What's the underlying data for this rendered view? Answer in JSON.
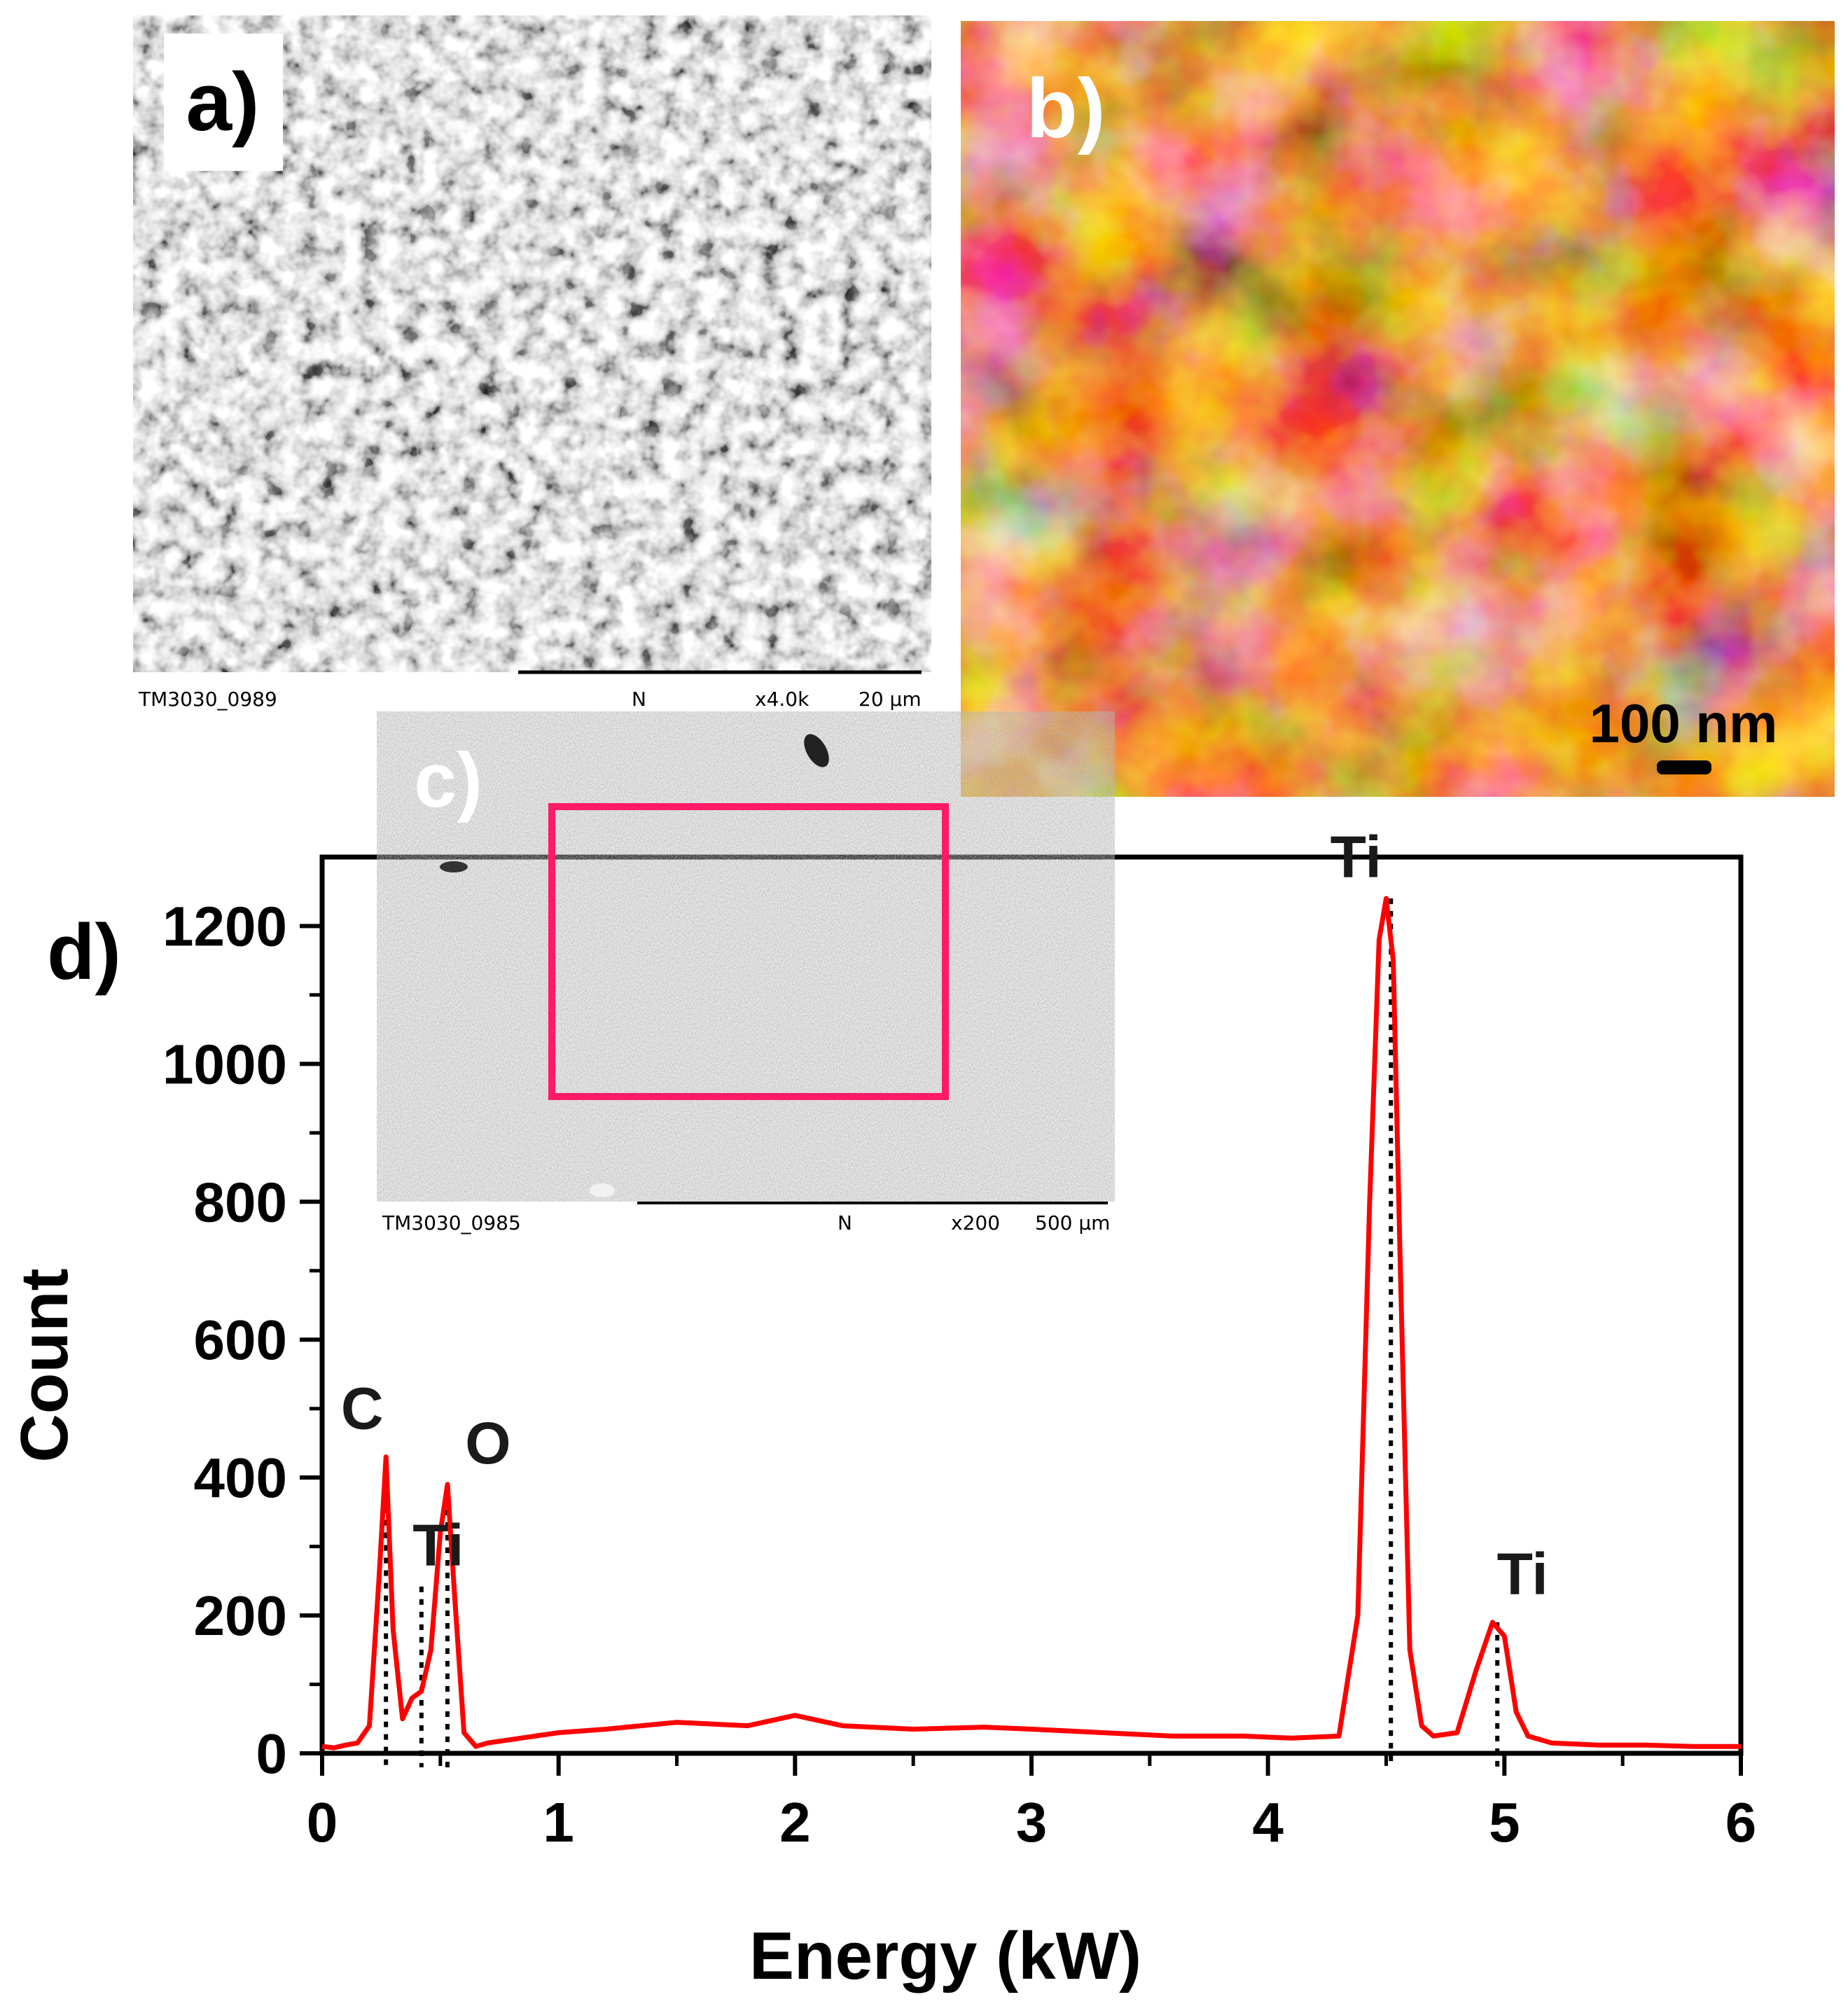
{
  "panels": {
    "a": {
      "label": "a)",
      "caption_id": "TM3030_0989",
      "caption_mode": "N",
      "caption_mag": "x4.0k",
      "caption_scale": "20 µm"
    },
    "b": {
      "label": "b)",
      "scale_text": "100 nm"
    },
    "c": {
      "label": "c)",
      "caption_id": "TM3030_0985",
      "caption_mode": "N",
      "caption_mag": "x200",
      "caption_scale": "500 µm",
      "box_color": "#ff1a66"
    },
    "d": {
      "label": "d)"
    }
  },
  "chart_data": {
    "type": "line",
    "xlabel": "Energy (kW)",
    "ylabel": "Count",
    "xlim": [
      0,
      6
    ],
    "ylim": [
      0,
      1300
    ],
    "xticks": [
      0,
      1,
      2,
      3,
      4,
      5,
      6
    ],
    "yticks": [
      0,
      200,
      400,
      600,
      800,
      1000,
      1200
    ],
    "line_color": "#ff0000",
    "series": [
      {
        "x": [
          0,
          0.05,
          0.1,
          0.15,
          0.2,
          0.24,
          0.27,
          0.3,
          0.34,
          0.38,
          0.42,
          0.46,
          0.5,
          0.53,
          0.56,
          0.6,
          0.65,
          0.7,
          0.8,
          0.9,
          1.0,
          1.2,
          1.5,
          1.8,
          2.0,
          2.2,
          2.5,
          2.8,
          3.0,
          3.3,
          3.6,
          3.9,
          4.1,
          4.3,
          4.38,
          4.43,
          4.47,
          4.5,
          4.53,
          4.56,
          4.6,
          4.65,
          4.7,
          4.8,
          4.88,
          4.95,
          5.0,
          5.05,
          5.1,
          5.2,
          5.4,
          5.6,
          5.8,
          6.0
        ],
        "y": [
          10,
          8,
          12,
          15,
          40,
          250,
          430,
          180,
          50,
          80,
          90,
          150,
          320,
          390,
          230,
          30,
          10,
          15,
          20,
          25,
          30,
          35,
          45,
          40,
          55,
          40,
          35,
          38,
          35,
          30,
          25,
          25,
          22,
          25,
          200,
          800,
          1180,
          1240,
          1150,
          700,
          150,
          40,
          25,
          30,
          120,
          190,
          170,
          60,
          25,
          15,
          12,
          12,
          10,
          10
        ]
      }
    ],
    "peak_labels": [
      {
        "text": "C",
        "x": 0.27
      },
      {
        "text": "Ti",
        "x": 0.42
      },
      {
        "text": "O",
        "x": 0.53
      },
      {
        "text": "Ti",
        "x": 4.52
      },
      {
        "text": "Ti",
        "x": 4.97
      }
    ]
  }
}
